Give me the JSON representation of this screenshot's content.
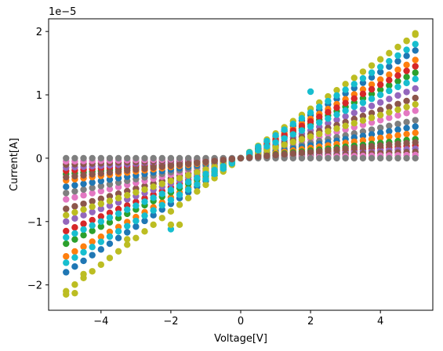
{
  "chart_data": {
    "type": "scatter",
    "title": "",
    "xlabel": "Voltage[V]",
    "ylabel": "Current[A]",
    "offset_text": "1e−5",
    "y_scale_multiplier": 1e-05,
    "xlim": [
      -5.5,
      5.5
    ],
    "ylim": [
      -2.4,
      2.2
    ],
    "xticks": [
      -4,
      -2,
      0,
      2,
      4
    ],
    "yticks": [
      -2,
      -1,
      0,
      1,
      2
    ],
    "xtick_labels": [
      "−4",
      "−2",
      "0",
      "2",
      "4"
    ],
    "ytick_labels": [
      "−2",
      "−1",
      "0",
      "1",
      "2"
    ],
    "grid": false,
    "legend": "none",
    "x": [
      -5.0,
      -4.75,
      -4.5,
      -4.25,
      -4.0,
      -3.75,
      -3.5,
      -3.25,
      -3.0,
      -2.75,
      -2.5,
      -2.25,
      -2.0,
      -1.75,
      -1.5,
      -1.25,
      -1.0,
      -0.75,
      -0.5,
      -0.25,
      0.0,
      0.25,
      0.5,
      0.75,
      1.0,
      1.25,
      1.5,
      1.75,
      2.0,
      2.25,
      2.5,
      2.75,
      3.0,
      3.25,
      3.5,
      3.75,
      4.0,
      4.25,
      4.5,
      4.75,
      5.0
    ],
    "series": [
      {
        "color": "#1f77b4",
        "neg_slope": 0.36,
        "pos_slope": 0.34
      },
      {
        "color": "#ff7f0e",
        "neg_slope": 0.31,
        "pos_slope": 0.31
      },
      {
        "color": "#2ca02c",
        "neg_slope": 0.27,
        "pos_slope": 0.27
      },
      {
        "color": "#d62728",
        "neg_slope": 0.23,
        "pos_slope": 0.29
      },
      {
        "color": "#9467bd",
        "neg_slope": 0.2,
        "pos_slope": 0.22
      },
      {
        "color": "#8c564b",
        "neg_slope": 0.16,
        "pos_slope": 0.19
      },
      {
        "color": "#e377c2",
        "neg_slope": 0.13,
        "pos_slope": 0.15
      },
      {
        "color": "#7f7f7f",
        "neg_slope": 0.11,
        "pos_slope": 0.12
      },
      {
        "color": "#bcbd22",
        "neg_slope": 0.42,
        "pos_slope": 0.39
      },
      {
        "color": "#17becf",
        "neg_slope": 0.33,
        "pos_slope": 0.36
      },
      {
        "color": "#1f77b4",
        "neg_slope": 0.09,
        "pos_slope": 0.1
      },
      {
        "color": "#ff7f0e",
        "neg_slope": 0.07,
        "pos_slope": 0.08
      },
      {
        "color": "#2ca02c",
        "neg_slope": 0.05,
        "pos_slope": 0.06
      },
      {
        "color": "#d62728",
        "neg_slope": 0.04,
        "pos_slope": 0.04
      },
      {
        "color": "#9467bd",
        "neg_slope": 0.03,
        "pos_slope": 0.03
      },
      {
        "color": "#8c564b",
        "neg_slope": 0.02,
        "pos_slope": 0.02
      },
      {
        "color": "#e377c2",
        "neg_slope": 0.01,
        "pos_slope": 0.01
      },
      {
        "color": "#7f7f7f",
        "neg_slope": 0.0,
        "pos_slope": 0.0
      },
      {
        "color": "#bcbd22",
        "neg_slope": 0.18,
        "pos_slope": 0.17
      },
      {
        "color": "#17becf",
        "neg_slope": 0.25,
        "pos_slope": 0.25
      },
      {
        "color": "#8c564b",
        "neg_slope": 0.06,
        "pos_slope": 0.05
      }
    ],
    "extra_points": [
      {
        "x": 2.0,
        "y": 1.05,
        "color": "#17becf"
      },
      {
        "x": -1.75,
        "y": -1.05,
        "color": "#bcbd22"
      },
      {
        "x": -2.0,
        "y": -1.12,
        "color": "#17becf"
      },
      {
        "x": -2.0,
        "y": -1.05,
        "color": "#bcbd22"
      },
      {
        "x": -5.0,
        "y": -2.15,
        "color": "#bcbd22"
      },
      {
        "x": -4.75,
        "y": -2.13,
        "color": "#bcbd22"
      },
      {
        "x": -3.25,
        "y": -1.28,
        "color": "#bcbd22"
      },
      {
        "x": -4.5,
        "y": -1.83,
        "color": "#bcbd22"
      },
      {
        "x": 4.75,
        "y": 1.85,
        "color": "#bcbd22"
      },
      {
        "x": 5.0,
        "y": 1.97,
        "color": "#bcbd22"
      }
    ]
  }
}
